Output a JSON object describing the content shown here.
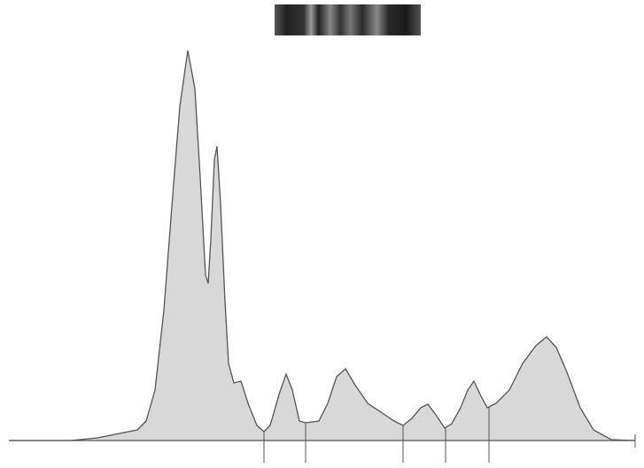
{
  "chart_data": {
    "type": "area",
    "x": [
      0,
      70,
      100,
      130,
      145,
      155,
      165,
      175,
      185,
      193,
      202,
      210,
      216,
      222,
      225,
      228,
      232,
      235,
      239,
      244,
      248,
      254,
      262,
      270,
      280,
      288,
      295,
      305,
      313,
      320,
      328,
      335,
      350,
      360,
      370,
      380,
      390,
      405,
      420,
      435,
      445,
      455,
      465,
      473,
      482,
      492,
      500,
      510,
      518,
      525,
      532,
      540,
      550,
      565,
      580,
      595,
      607,
      618,
      630,
      645,
      660,
      680,
      707
    ],
    "values": [
      0,
      0,
      3,
      9,
      12,
      22,
      57,
      147,
      277,
      377,
      440,
      397,
      297,
      187,
      177,
      227,
      317,
      332,
      267,
      157,
      87,
      65,
      67,
      42,
      17,
      10,
      17,
      52,
      75,
      57,
      22,
      20,
      22,
      42,
      72,
      81,
      64,
      42,
      32,
      22,
      17,
      25,
      37,
      41,
      29,
      14,
      19,
      37,
      57,
      67,
      52,
      37,
      42,
      57,
      87,
      107,
      117,
      105,
      77,
      37,
      12,
      1,
      0
    ],
    "xlim": [
      0,
      707
    ],
    "ylim": [
      0,
      442
    ],
    "xticks": [
      288,
      335,
      445,
      493,
      542
    ],
    "color": "#d8d8d8"
  }
}
